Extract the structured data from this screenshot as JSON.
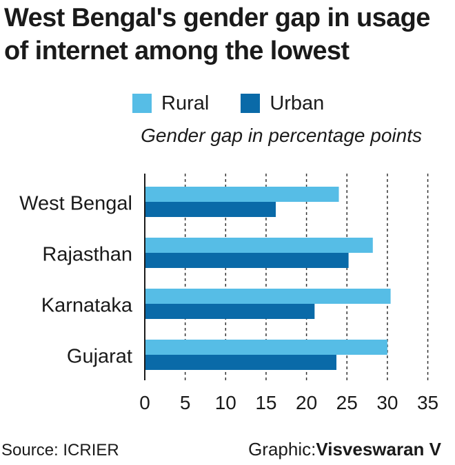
{
  "title_lines": [
    "West Bengal's gender gap in usage",
    "of internet among the lowest"
  ],
  "subtitle": "Gender gap in percentage points",
  "source": "Source: ICRIER",
  "credit": {
    "label": "Graphic:",
    "name": "Visveswaran V"
  },
  "colors": {
    "rural": "#56bde6",
    "urban": "#0a6aa8"
  },
  "chart_data": {
    "type": "bar",
    "orientation": "horizontal",
    "categories": [
      "West Bengal",
      "Rajasthan",
      "Karnataka",
      "Gujarat"
    ],
    "series": [
      {
        "name": "Rural",
        "values": [
          24,
          28.2,
          30.4,
          30
        ]
      },
      {
        "name": "Urban",
        "values": [
          16.2,
          25.2,
          21,
          23.7
        ]
      }
    ],
    "xlim": [
      0,
      35
    ],
    "xticks": [
      0,
      5,
      10,
      15,
      20,
      25,
      30,
      35
    ],
    "grid": "vertical-dashed",
    "legend": "top"
  }
}
